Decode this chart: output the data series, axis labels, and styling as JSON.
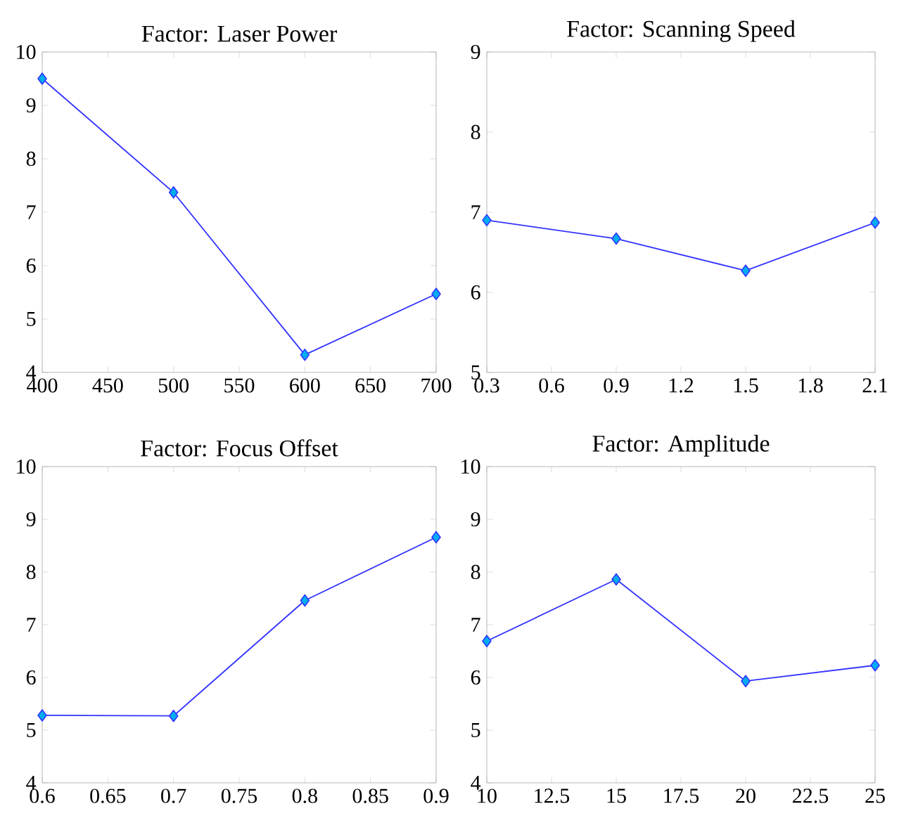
{
  "chart_data": [
    {
      "type": "line",
      "title": "Factor: Laser Power",
      "x": [
        400,
        500,
        600,
        700
      ],
      "series": [
        {
          "color": "#3333ff",
          "values": [
            9.5,
            7.37,
            4.33,
            5.47
          ]
        }
      ],
      "xlim": [
        400,
        700
      ],
      "ylim": [
        4,
        10
      ],
      "xticks": [
        400,
        450,
        500,
        550,
        600,
        650,
        700
      ],
      "yticks": [
        4,
        5,
        6,
        7,
        8,
        9,
        10
      ],
      "marker": "diamond"
    },
    {
      "type": "line",
      "title": "Factor: Scanning Speed",
      "x": [
        0.3,
        0.9,
        1.5,
        2.1
      ],
      "series": [
        {
          "color": "#3333ff",
          "values": [
            6.9,
            6.67,
            6.27,
            6.87
          ]
        }
      ],
      "xlim": [
        0.3,
        2.1
      ],
      "ylim": [
        5,
        9
      ],
      "xticks": [
        0.3,
        0.6,
        0.9,
        1.2,
        1.5,
        1.8,
        2.1
      ],
      "yticks": [
        5,
        6,
        7,
        8,
        9
      ],
      "marker": "diamond"
    },
    {
      "type": "line",
      "title": "Factor: Focus Offset",
      "x": [
        0.6,
        0.7,
        0.8,
        0.9
      ],
      "series": [
        {
          "color": "#3333ff",
          "values": [
            5.28,
            5.27,
            7.46,
            8.66
          ]
        }
      ],
      "xlim": [
        0.6,
        0.9
      ],
      "ylim": [
        4,
        10
      ],
      "xticks": [
        0.6,
        0.65,
        0.7,
        0.75,
        0.8,
        0.85,
        0.9
      ],
      "yticks": [
        4,
        5,
        6,
        7,
        8,
        9,
        10
      ],
      "marker": "diamond"
    },
    {
      "type": "line",
      "title": "Factor: Amplitude",
      "x": [
        10,
        15,
        20,
        25
      ],
      "series": [
        {
          "color": "#3333ff",
          "values": [
            6.69,
            7.86,
            5.93,
            6.23
          ]
        }
      ],
      "xlim": [
        10,
        25
      ],
      "ylim": [
        4,
        10
      ],
      "xticks": [
        10,
        12.5,
        15,
        17.5,
        20,
        22.5,
        25
      ],
      "yticks": [
        4,
        5,
        6,
        7,
        8,
        9,
        10
      ],
      "marker": "diamond"
    }
  ]
}
